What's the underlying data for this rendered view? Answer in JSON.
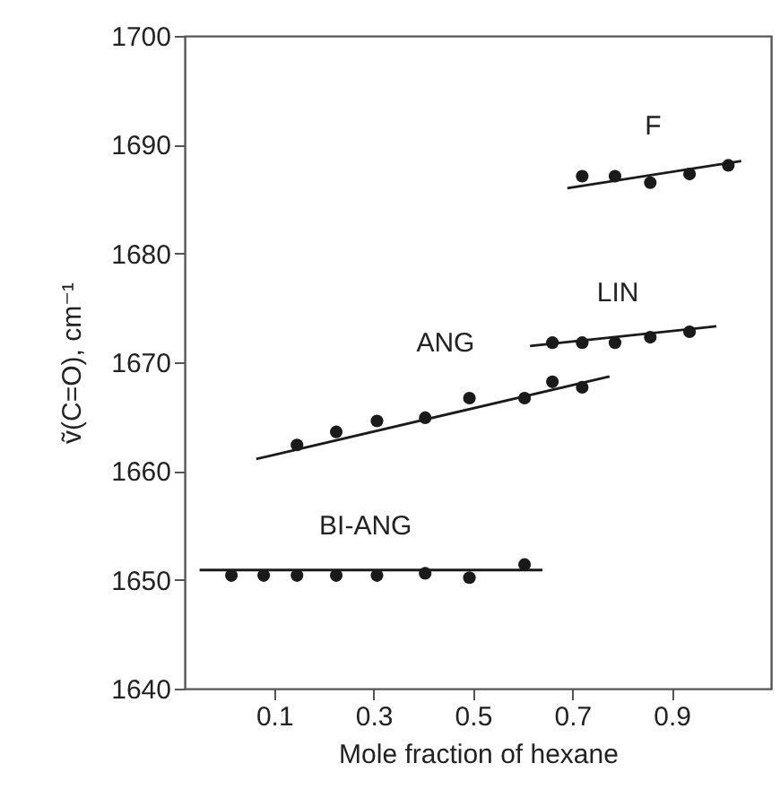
{
  "chart_data": {
    "type": "scatter",
    "xlabel": "Mole fraction of hexane",
    "ylabel": "ṽ(C=O), cm⁻¹",
    "xlim": [
      -0.08,
      1.1
    ],
    "ylim": [
      1640,
      1700
    ],
    "xticks": [
      0.1,
      0.3,
      0.5,
      0.7,
      0.9
    ],
    "yticks": [
      1640,
      1650,
      1660,
      1670,
      1680,
      1690,
      1700
    ],
    "grid": false,
    "marker": "circle",
    "series": [
      {
        "name": "F",
        "color": "#1a1a1a",
        "x": [
          0.72,
          0.786,
          0.857,
          0.936,
          1.014
        ],
        "values": [
          1687.1,
          1687.1,
          1686.5,
          1687.3,
          1688.1
        ]
      },
      {
        "type": "line",
        "marker": "none",
        "color": "#1a1a1a",
        "x": [
          0.69,
          1.04
        ],
        "values": [
          1686.0,
          1688.5
        ]
      },
      {
        "name": "LIN",
        "color": "#1a1a1a",
        "x": [
          0.66,
          0.72,
          0.786,
          0.857,
          0.936
        ],
        "values": [
          1671.8,
          1671.8,
          1671.8,
          1672.3,
          1672.8
        ]
      },
      {
        "type": "line",
        "marker": "none",
        "color": "#1a1a1a",
        "x": [
          0.615,
          0.99
        ],
        "values": [
          1671.5,
          1673.3
        ]
      },
      {
        "name": "ANG",
        "color": "#1a1a1a",
        "x": [
          0.146,
          0.225,
          0.307,
          0.404,
          0.493,
          0.604,
          0.66,
          0.72
        ],
        "values": [
          1662.4,
          1663.6,
          1664.6,
          1664.9,
          1666.7,
          1666.7,
          1668.2,
          1667.7
        ]
      },
      {
        "type": "line",
        "marker": "none",
        "color": "#1a1a1a",
        "x": [
          0.064,
          0.775
        ],
        "values": [
          1661.1,
          1668.7
        ]
      },
      {
        "name": "BI-ANG",
        "color": "#1a1a1a",
        "x": [
          0.014,
          0.079,
          0.146,
          0.225,
          0.307,
          0.404,
          0.493,
          0.604
        ],
        "values": [
          1650.4,
          1650.4,
          1650.4,
          1650.4,
          1650.4,
          1650.6,
          1650.2,
          1651.4
        ]
      },
      {
        "type": "line",
        "marker": "none",
        "color": "#1a1a1a",
        "x": [
          -0.05,
          0.64
        ],
        "values": [
          1650.9,
          1650.9
        ]
      }
    ]
  }
}
